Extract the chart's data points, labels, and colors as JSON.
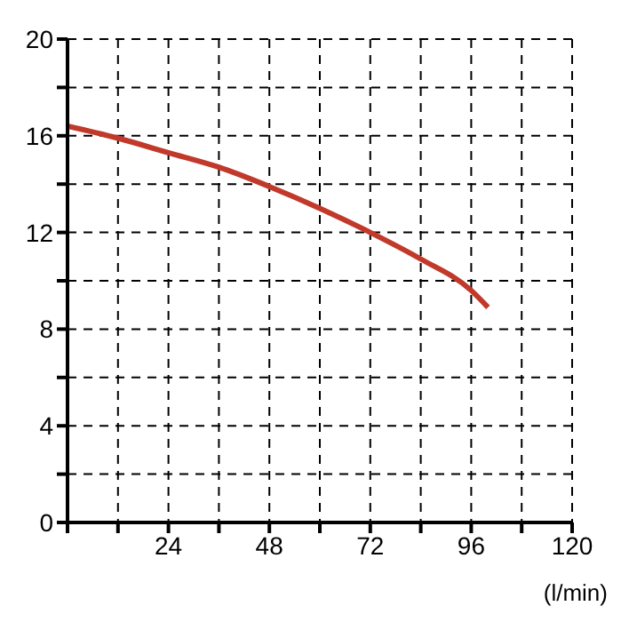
{
  "chart_data": {
    "type": "line",
    "xlabel": "(l/min)",
    "x": [
      0,
      12,
      24,
      36,
      48,
      60,
      72,
      84,
      96,
      100
    ],
    "series": [
      {
        "color": "#c0392b",
        "values": [
          16.4,
          15.9,
          15.3,
          14.7,
          13.9,
          13,
          12,
          10.9,
          9.6,
          8.9
        ]
      }
    ],
    "xlim": [
      0,
      120
    ],
    "xticks": [
      {
        "value": 0,
        "label": null
      },
      {
        "value": 12,
        "label": null
      },
      24,
      {
        "value": 36,
        "label": null
      },
      48,
      {
        "value": 60,
        "label": null
      },
      72,
      {
        "value": 84,
        "label": null
      },
      96,
      {
        "value": 108,
        "label": null
      },
      120
    ],
    "ylim": [
      0,
      20
    ],
    "yticks": [
      0,
      {
        "value": 2,
        "label": null
      },
      4,
      {
        "value": 6,
        "label": null
      },
      8,
      {
        "value": 10,
        "label": null
      },
      12,
      {
        "value": 14,
        "label": null
      },
      16,
      {
        "value": 18,
        "label": null
      },
      20
    ],
    "grid": true,
    "marker": "none",
    "line_style": "solid"
  }
}
